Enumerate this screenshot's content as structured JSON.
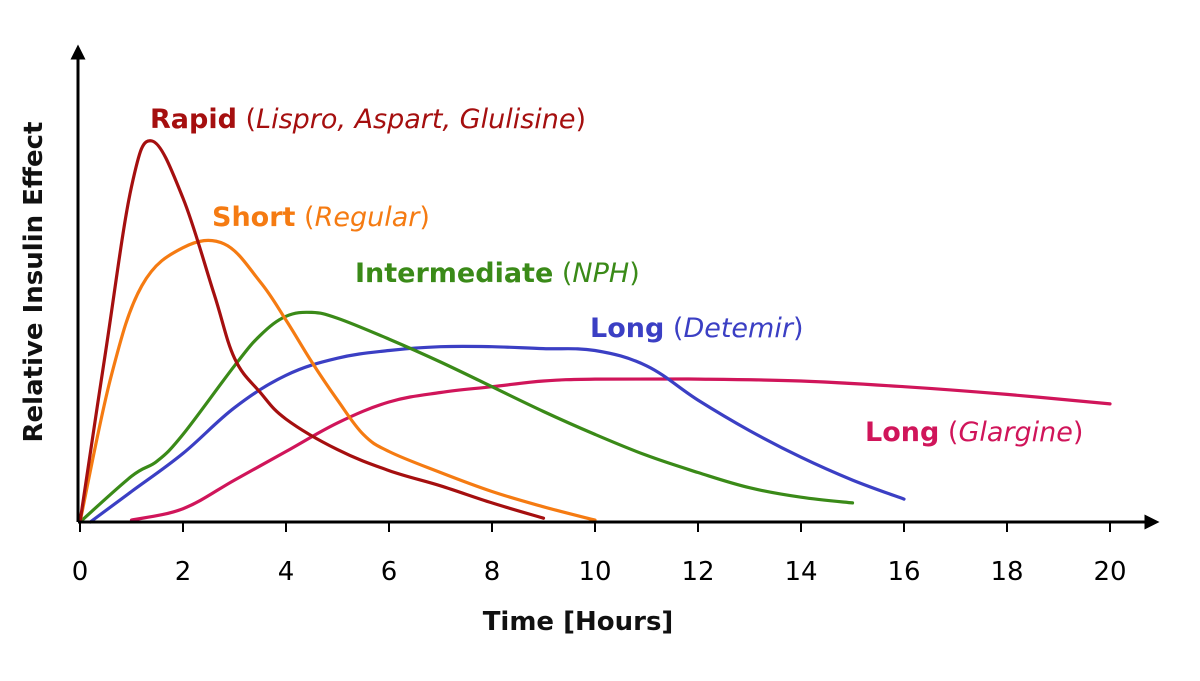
{
  "chart_data": {
    "type": "line",
    "xlabel": "Time [Hours]",
    "ylabel": "Relative Insulin Effect",
    "xlim": [
      0,
      20
    ],
    "ylim": [
      0,
      10
    ],
    "x_ticks": [
      "0",
      "2",
      "4",
      "6",
      "8",
      "10",
      "12",
      "14",
      "16",
      "18",
      "20"
    ],
    "y_ticks_shown": false,
    "grid": false,
    "series": [
      {
        "name": "Rapid (Lispro, Aspart, Glulisine)",
        "label_bold": "Rapid",
        "label_open": " (",
        "label_italic": "Lispro, Aspart, Glulisine",
        "label_close": ")",
        "color": "#a50f0f",
        "x": [
          0,
          0.5,
          1,
          1.4,
          2,
          2.6,
          3,
          3.5,
          4,
          5,
          6,
          7,
          8,
          9
        ],
        "y": [
          0,
          4.5,
          8.8,
          10.0,
          8.5,
          6.0,
          4.3,
          3.4,
          2.7,
          1.9,
          1.35,
          0.95,
          0.5,
          0.1
        ]
      },
      {
        "name": "Short (Regular)",
        "label_bold": "Short",
        "label_open": " (",
        "label_italic": "Regular",
        "label_close": ")",
        "color": "#f57b12",
        "x": [
          0,
          0.6,
          1.2,
          2,
          2.8,
          3.5,
          4,
          4.5,
          5,
          5.5,
          6,
          7,
          8,
          9,
          10
        ],
        "y": [
          0,
          3.8,
          6.2,
          7.2,
          7.3,
          6.3,
          5.3,
          4.2,
          3.2,
          2.3,
          1.85,
          1.3,
          0.8,
          0.4,
          0.05
        ]
      },
      {
        "name": "Intermediate (NPH)",
        "label_bold": "Intermediate",
        "label_open": " (",
        "label_italic": "NPH",
        "label_close": ")",
        "color": "#3a8a18",
        "x": [
          0,
          1,
          1.5,
          2,
          3,
          3.5,
          4,
          4.5,
          5,
          6,
          7,
          8,
          9,
          10,
          11,
          12,
          13,
          14,
          15
        ],
        "y": [
          0,
          1.2,
          1.6,
          2.3,
          4.1,
          4.9,
          5.4,
          5.5,
          5.35,
          4.8,
          4.2,
          3.55,
          2.9,
          2.3,
          1.75,
          1.3,
          0.9,
          0.65,
          0.5
        ]
      },
      {
        "name": "Long (Detemir)",
        "label_bold": "Long",
        "label_open": " (",
        "label_italic": "Detemir",
        "label_close": ")",
        "color": "#3b3fc4",
        "x": [
          0.2,
          1,
          2,
          3,
          4,
          5,
          6,
          7,
          8,
          9,
          10,
          11,
          12,
          13,
          14,
          15,
          16
        ],
        "y": [
          0,
          0.8,
          1.8,
          3.0,
          3.85,
          4.3,
          4.5,
          4.6,
          4.6,
          4.55,
          4.5,
          4.1,
          3.2,
          2.4,
          1.7,
          1.1,
          0.6
        ]
      },
      {
        "name": "Long (Glargine)",
        "label_bold": "Long",
        "label_open": " (",
        "label_italic": "Glargine",
        "label_close": ")",
        "color": "#d0155a",
        "x": [
          1,
          2,
          3,
          4,
          5,
          6,
          7,
          8,
          9,
          10,
          12,
          14,
          16,
          18,
          20
        ],
        "y": [
          0.05,
          0.35,
          1.1,
          1.85,
          2.6,
          3.15,
          3.4,
          3.55,
          3.7,
          3.75,
          3.75,
          3.7,
          3.55,
          3.35,
          3.1
        ]
      }
    ]
  }
}
